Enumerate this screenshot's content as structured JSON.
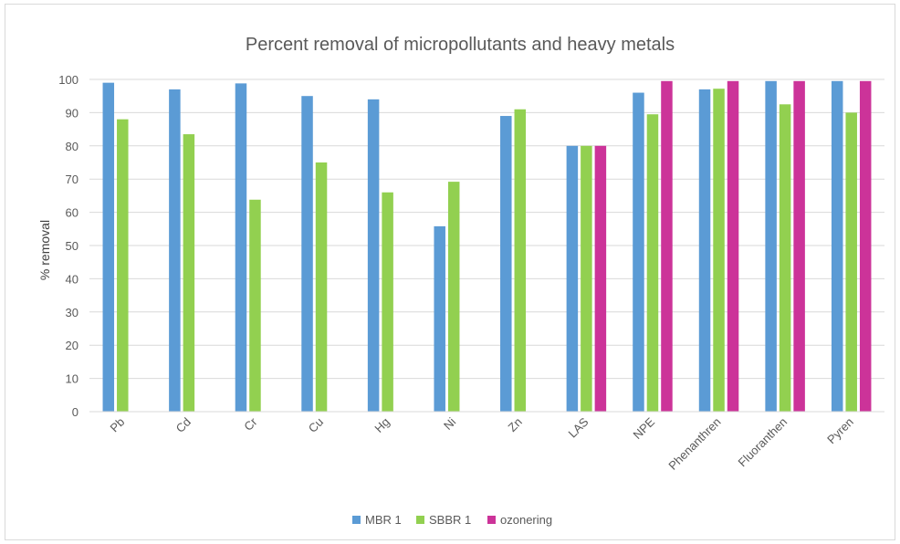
{
  "chart_data": {
    "type": "bar",
    "title": "Percent removal of micropollutants and heavy metals",
    "xlabel": "",
    "ylabel": "% removal",
    "ylim": [
      0,
      100
    ],
    "yticks": [
      0,
      10,
      20,
      30,
      40,
      50,
      60,
      70,
      80,
      90,
      100
    ],
    "grid": true,
    "legend_position": "bottom",
    "categories": [
      "Pb",
      "Cd",
      "Cr",
      "Cu",
      "Hg",
      "Ni",
      "Zn",
      "LAS",
      "NPE",
      "Phenanthren",
      "Fluoranthen",
      "Pyren"
    ],
    "series": [
      {
        "name": "MBR 1",
        "color": "#5b9bd5",
        "values": [
          99,
          97,
          98.8,
          95,
          94,
          55.8,
          89,
          80,
          96,
          97,
          99.5,
          99.5
        ]
      },
      {
        "name": "SBBR 1",
        "color": "#92d050",
        "values": [
          88,
          83.5,
          63.8,
          75,
          66,
          69.2,
          91,
          80,
          89.5,
          97.2,
          92.5,
          90
        ]
      },
      {
        "name": "ozonering",
        "color": "#cc3399",
        "values": [
          null,
          null,
          null,
          null,
          null,
          null,
          null,
          80,
          99.5,
          99.5,
          99.5,
          99.5
        ]
      }
    ]
  }
}
